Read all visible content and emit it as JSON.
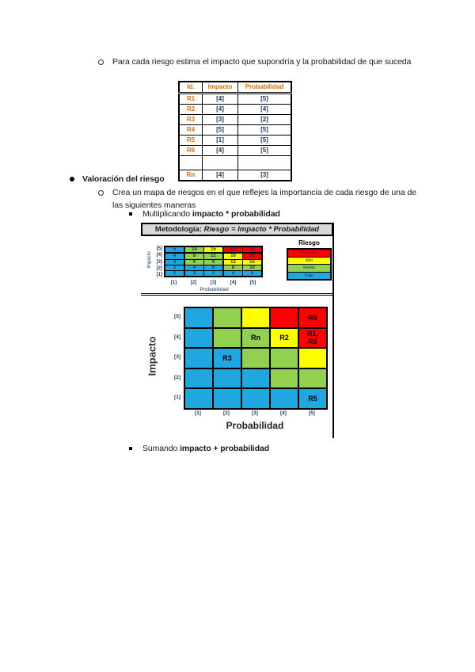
{
  "colors": {
    "risk_levels": {
      "Muy alto": "#FF0000",
      "Alto": "#FFFF00",
      "Medio": "#92D050",
      "Bajo": "#1FA8E0"
    },
    "value_text": "#17375E",
    "header_orange": "#E36C0A",
    "panel_gray": "#D9D9D9",
    "body_text": "#1A1A1A"
  },
  "texts": {
    "intro_bullet": "Para cada riesgo estima el impacto que supondría y la probabilidad de que suceda",
    "section_title": "Valoración del riesgo",
    "section_bullet": "Crea un mapa de riesgos en el que reflejes la importancia de cada riesgo de una de las siguientes maneras",
    "item_multiply_prefix": "Multiplicando ",
    "item_multiply_bold": "impacto * probabilidad",
    "item_sum_prefix": "Sumando ",
    "item_sum_bold": "impacto + probabilidad",
    "methodology_prefix": "Metodología: ",
    "methodology_formula": "Riesgo = Impacto * Probabilidad"
  },
  "chart_data": [
    {
      "type": "table",
      "columns": [
        "Id.",
        "Impacto",
        "Probabilidad"
      ],
      "rows": [
        [
          "R1",
          "[4]",
          "[5]"
        ],
        [
          "R2",
          "[4]",
          "[4]"
        ],
        [
          "R3",
          "[3]",
          "[2]"
        ],
        [
          "R4",
          "[5]",
          "[5]"
        ],
        [
          "R5",
          "[1]",
          "[5]"
        ],
        [
          "R6",
          "[4]",
          "[5]"
        ],
        [
          "Rn",
          "[4]",
          "[3]"
        ]
      ]
    },
    {
      "type": "heatmap",
      "title": "Metodología: Riesgo = Impacto * Probabilidad",
      "xlabel": "Probabilidad",
      "ylabel": "Impacto",
      "x": [
        1,
        2,
        3,
        4,
        5
      ],
      "y": [
        5,
        4,
        3,
        2,
        1
      ],
      "values": [
        [
          5,
          10,
          15,
          20,
          25
        ],
        [
          4,
          8,
          12,
          16,
          20
        ],
        [
          3,
          6,
          9,
          12,
          15
        ],
        [
          2,
          4,
          6,
          8,
          10
        ],
        [
          1,
          2,
          3,
          4,
          5
        ]
      ],
      "cell_risk": [
        [
          "Bajo",
          "Medio",
          "Alto",
          "Muy alto",
          "Muy alto"
        ],
        [
          "Bajo",
          "Medio",
          "Medio",
          "Alto",
          "Muy alto"
        ],
        [
          "Bajo",
          "Medio",
          "Medio",
          "Alto",
          "Alto"
        ],
        [
          "Bajo",
          "Bajo",
          "Bajo",
          "Medio",
          "Medio"
        ],
        [
          "Bajo",
          "Bajo",
          "Bajo",
          "Bajo",
          "Bajo"
        ]
      ],
      "legend_title": "Riesgo",
      "legend": [
        "Muy alto",
        "Alto",
        "Medio",
        "Bajo"
      ]
    },
    {
      "type": "heatmap",
      "title": "",
      "xlabel": "Probabilidad",
      "ylabel": "Impacto",
      "x": [
        1,
        2,
        3,
        4,
        5
      ],
      "y": [
        5,
        4,
        3,
        2,
        1
      ],
      "cell_risk": [
        [
          "Bajo",
          "Medio",
          "Alto",
          "Muy alto",
          "Muy alto"
        ],
        [
          "Bajo",
          "Medio",
          "Medio",
          "Alto",
          "Muy alto"
        ],
        [
          "Bajo",
          "Bajo",
          "Medio",
          "Medio",
          "Alto"
        ],
        [
          "Bajo",
          "Bajo",
          "Bajo",
          "Medio",
          "Medio"
        ],
        [
          "Bajo",
          "Bajo",
          "Bajo",
          "Bajo",
          "Bajo"
        ]
      ],
      "annotations": [
        {
          "label": "R4",
          "col": 5,
          "row": 5
        },
        {
          "label": "Rn",
          "col": 3,
          "row": 4
        },
        {
          "label": "R2",
          "col": 4,
          "row": 4
        },
        {
          "label": "R1,\nR6",
          "col": 5,
          "row": 4
        },
        {
          "label": "R3",
          "col": 2,
          "row": 3
        },
        {
          "label": "R5",
          "col": 5,
          "row": 1
        }
      ]
    }
  ]
}
